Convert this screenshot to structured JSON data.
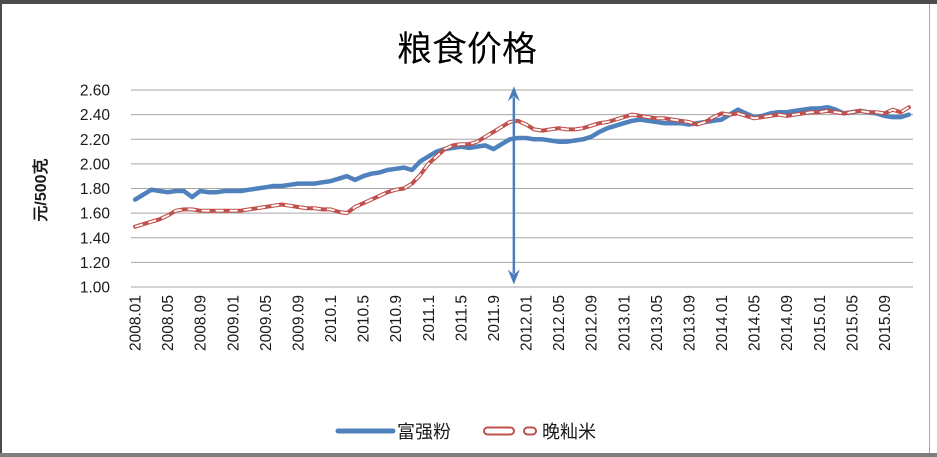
{
  "chart_data": {
    "type": "line",
    "title": "粮食价格",
    "ylabel": "元/500克",
    "xlabel": "",
    "ylim": [
      1.0,
      2.6
    ],
    "ytick_step": 0.2,
    "ytick_labels": [
      "2.60",
      "2.40",
      "2.20",
      "2.00",
      "1.80",
      "1.60",
      "1.40",
      "1.20",
      "1.00"
    ],
    "grid": true,
    "legend_position": "bottom",
    "x_months_total": 96,
    "x_tick_every": 4,
    "x_tick_labels": [
      "2008.01",
      "2008.05",
      "2008.09",
      "2009.01",
      "2009.05",
      "2009.09",
      "2010.1",
      "2010.5",
      "2010.9",
      "2011.1",
      "2011.5",
      "2011.9",
      "2012.01",
      "2012.05",
      "2012.09",
      "2013.01",
      "2013.05",
      "2013.09",
      "2014.01",
      "2014.05",
      "2014.09",
      "2015.01",
      "2015.05",
      "2015.09"
    ],
    "colors": {
      "series_fuqiangfen": "#4F81BD",
      "series_wanxianmi": "#C0504D",
      "wanxianmi_dash_core": "#FFFFFF",
      "gridline": "#a6a6a6",
      "annotation_arrow": "#4a7ebb"
    },
    "annotation": {
      "shape": "vertical-double-arrow",
      "month_index": 46.5,
      "value_top": 2.63,
      "value_bottom": 1.02
    },
    "series": [
      {
        "name": "富强粉",
        "style": "solid",
        "values": [
          1.71,
          1.75,
          1.79,
          1.78,
          1.77,
          1.78,
          1.78,
          1.73,
          1.78,
          1.77,
          1.77,
          1.78,
          1.78,
          1.78,
          1.79,
          1.8,
          1.81,
          1.82,
          1.82,
          1.83,
          1.84,
          1.84,
          1.84,
          1.85,
          1.86,
          1.88,
          1.9,
          1.87,
          1.9,
          1.92,
          1.93,
          1.95,
          1.96,
          1.97,
          1.95,
          2.02,
          2.06,
          2.1,
          2.12,
          2.13,
          2.14,
          2.13,
          2.14,
          2.15,
          2.12,
          2.16,
          2.2,
          2.21,
          2.21,
          2.2,
          2.2,
          2.19,
          2.18,
          2.18,
          2.19,
          2.2,
          2.22,
          2.26,
          2.29,
          2.31,
          2.33,
          2.35,
          2.36,
          2.35,
          2.34,
          2.33,
          2.33,
          2.33,
          2.32,
          2.33,
          2.34,
          2.35,
          2.36,
          2.4,
          2.44,
          2.41,
          2.38,
          2.39,
          2.41,
          2.42,
          2.42,
          2.43,
          2.44,
          2.45,
          2.45,
          2.46,
          2.44,
          2.41,
          2.42,
          2.43,
          2.42,
          2.41,
          2.39,
          2.38,
          2.38,
          2.4
        ]
      },
      {
        "name": "晚籼米",
        "style": "dashed-outline",
        "values": [
          1.49,
          1.51,
          1.53,
          1.55,
          1.58,
          1.62,
          1.63,
          1.63,
          1.62,
          1.62,
          1.62,
          1.62,
          1.62,
          1.62,
          1.63,
          1.64,
          1.65,
          1.66,
          1.67,
          1.66,
          1.65,
          1.64,
          1.64,
          1.63,
          1.63,
          1.61,
          1.6,
          1.65,
          1.68,
          1.71,
          1.74,
          1.77,
          1.79,
          1.8,
          1.84,
          1.91,
          2.0,
          2.06,
          2.12,
          2.15,
          2.16,
          2.16,
          2.18,
          2.22,
          2.26,
          2.3,
          2.34,
          2.35,
          2.32,
          2.28,
          2.27,
          2.28,
          2.29,
          2.28,
          2.28,
          2.29,
          2.31,
          2.33,
          2.34,
          2.36,
          2.38,
          2.4,
          2.39,
          2.38,
          2.37,
          2.37,
          2.36,
          2.35,
          2.34,
          2.32,
          2.34,
          2.38,
          2.41,
          2.4,
          2.41,
          2.39,
          2.37,
          2.38,
          2.39,
          2.4,
          2.39,
          2.4,
          2.41,
          2.42,
          2.42,
          2.43,
          2.42,
          2.41,
          2.42,
          2.43,
          2.42,
          2.42,
          2.41,
          2.44,
          2.42,
          2.46
        ]
      }
    ]
  }
}
